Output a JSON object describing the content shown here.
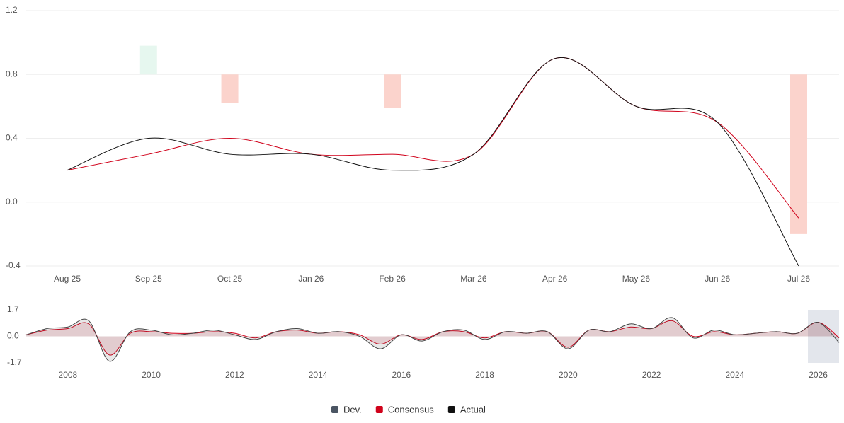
{
  "chart_data": [
    {
      "type": "line",
      "categories": [
        "Aug 25",
        "Sep 25",
        "Oct 25",
        "Jan 26",
        "Feb 26",
        "Mar 26",
        "Apr 26",
        "May 26",
        "Jun 26",
        "Jul 26"
      ],
      "series": [
        {
          "name": "Dev.",
          "color": "#4b5563",
          "axis": "y2",
          "positive_color": "#e6f7ef",
          "negative_color": "#fbd3cc",
          "values": [
            0,
            0.18,
            -0.18,
            0,
            -0.21,
            0,
            0,
            0,
            0,
            -1.0
          ]
        },
        {
          "name": "Consensus",
          "color": "#d0021b",
          "values": [
            0.2,
            0.3,
            0.4,
            0.3,
            0.3,
            0.3,
            0.9,
            0.6,
            0.5,
            -0.1
          ]
        },
        {
          "name": "Actual",
          "color": "#111111",
          "values": [
            0.2,
            0.4,
            0.3,
            0.3,
            0.2,
            0.3,
            0.9,
            0.6,
            0.5,
            -0.4
          ]
        }
      ],
      "ylim": [
        -0.4,
        1.2
      ],
      "yticks": [
        -0.4,
        {
          "value": 0,
          "label": "0.0"
        },
        0.4,
        0.8,
        1.2
      ],
      "y2lim": [
        -1.2,
        0.4
      ],
      "grid": true
    },
    {
      "type": "navigator",
      "x": [
        2007.0,
        2007.5,
        2008.0,
        2008.5,
        2009.0,
        2009.5,
        2010.0,
        2010.5,
        2011.0,
        2011.5,
        2012.0,
        2012.5,
        2013.0,
        2013.5,
        2014.0,
        2014.5,
        2015.0,
        2015.5,
        2016.0,
        2016.5,
        2017.0,
        2017.5,
        2018.0,
        2018.5,
        2019.0,
        2019.5,
        2020.0,
        2020.5,
        2021.0,
        2021.5,
        2022.0,
        2022.5,
        2023.0,
        2023.5,
        2024.0,
        2024.5,
        2025.0,
        2025.5,
        2026.0,
        2026.5
      ],
      "series": [
        {
          "name": "Consensus",
          "color": "#d0021b",
          "values": [
            0.1,
            0.4,
            0.5,
            0.8,
            -1.2,
            0.2,
            0.3,
            0.2,
            0.2,
            0.3,
            0.2,
            -0.1,
            0.3,
            0.4,
            0.2,
            0.3,
            0.1,
            -0.5,
            0.1,
            -0.2,
            0.3,
            0.3,
            -0.1,
            0.3,
            0.2,
            0.3,
            -0.7,
            0.4,
            0.3,
            0.6,
            0.5,
            1.0,
            0.0,
            0.3,
            0.1,
            0.2,
            0.3,
            0.2,
            0.9,
            -0.1
          ]
        },
        {
          "name": "Actual",
          "color": "#444444",
          "values": [
            0.1,
            0.5,
            0.6,
            1.0,
            -1.6,
            0.3,
            0.4,
            0.1,
            0.2,
            0.4,
            0.1,
            -0.2,
            0.3,
            0.5,
            0.2,
            0.3,
            0.0,
            -0.8,
            0.1,
            -0.3,
            0.3,
            0.4,
            -0.2,
            0.3,
            0.2,
            0.3,
            -0.8,
            0.4,
            0.3,
            0.8,
            0.5,
            1.2,
            -0.1,
            0.4,
            0.1,
            0.2,
            0.3,
            0.2,
            0.9,
            -0.4
          ]
        }
      ],
      "xlim": [
        2007,
        2026.5
      ],
      "xticks": [
        2008,
        2010,
        2012,
        2014,
        2016,
        2018,
        2020,
        2022,
        2024,
        2026
      ],
      "ylim": [
        -1.7,
        1.7
      ],
      "yticks": [
        -1.7,
        {
          "value": 0,
          "label": "0.0"
        },
        1.7
      ]
    }
  ]
}
